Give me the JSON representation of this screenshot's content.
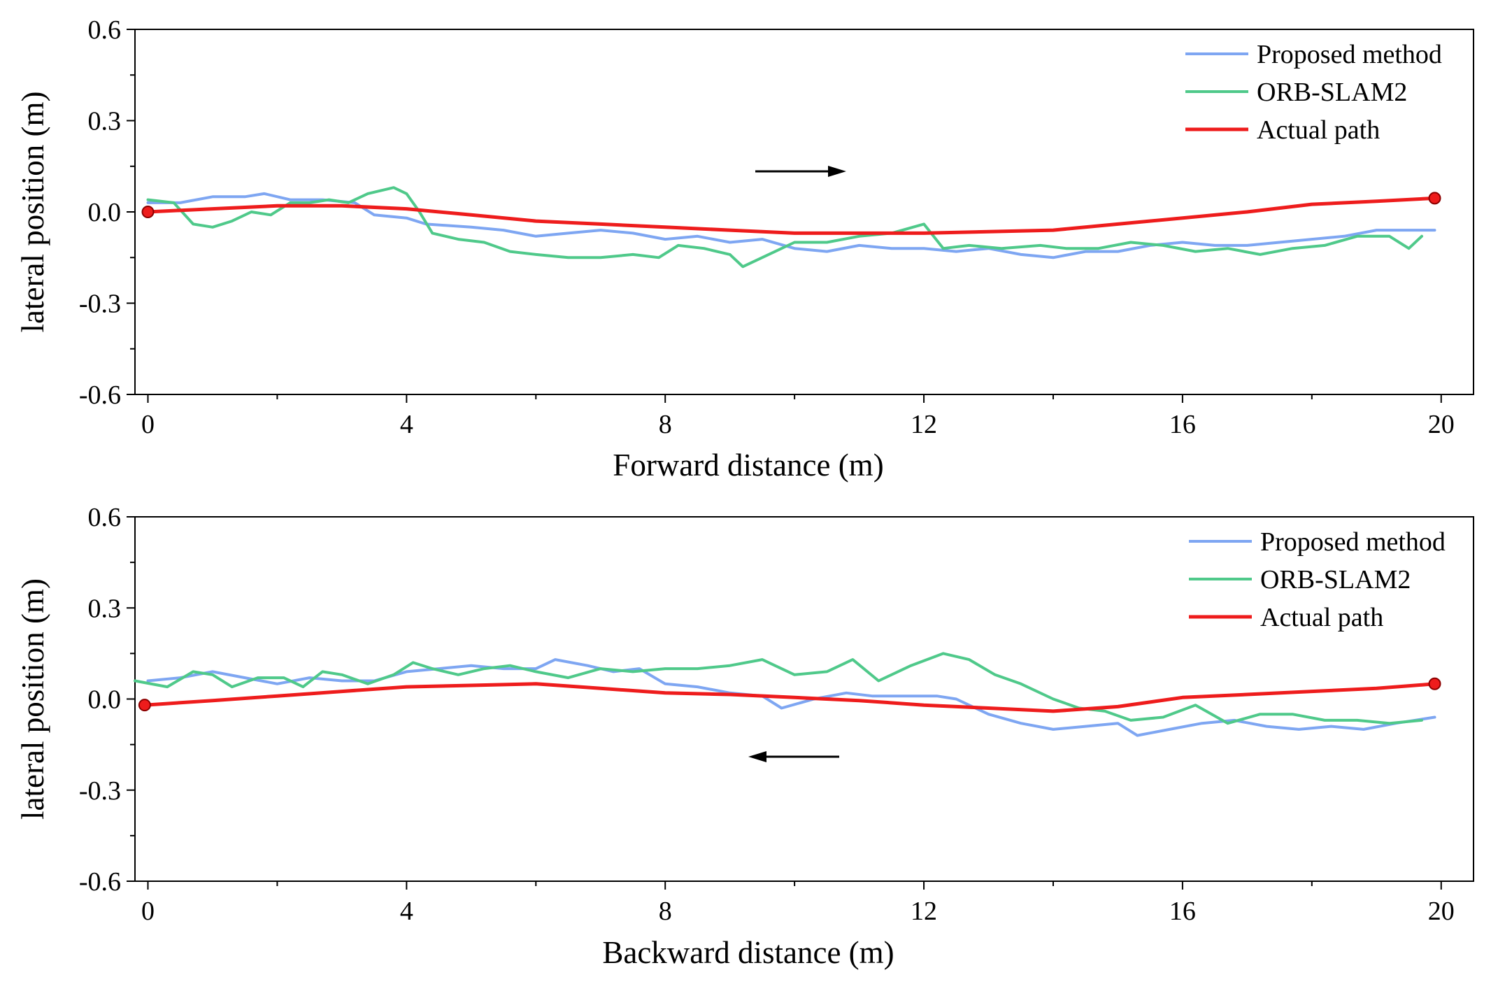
{
  "chart_data": [
    {
      "type": "line",
      "title": "",
      "xlabel": "Forward distance (m)",
      "ylabel": "lateral position (m)",
      "xlim": [
        -0.2,
        20.5
      ],
      "ylim": [
        -0.6,
        0.6
      ],
      "xticks": [
        0,
        4,
        8,
        12,
        16,
        20
      ],
      "xtick_labels": [
        "0",
        "4",
        "8",
        "12",
        "16",
        "20"
      ],
      "yticks": [
        0.6,
        0.3,
        0.0,
        -0.3,
        -0.6
      ],
      "ytick_labels": [
        "0.6",
        "0.3",
        "0.0",
        "-0.3",
        "-0.6"
      ],
      "grid": false,
      "legend_position": "top-right",
      "direction_arrow": "right",
      "series": [
        {
          "name": "Proposed method",
          "color": "#7ea6f2",
          "x": [
            0,
            0.5,
            1.0,
            1.5,
            1.8,
            2.2,
            2.7,
            3.2,
            3.5,
            4.0,
            4.3,
            5.0,
            5.5,
            6.0,
            6.5,
            7.0,
            7.5,
            8.0,
            8.5,
            9.0,
            9.5,
            10.0,
            10.5,
            11.0,
            11.5,
            12.0,
            12.5,
            13.0,
            13.5,
            14.0,
            14.5,
            15.0,
            15.5,
            16.0,
            16.5,
            17.0,
            17.5,
            18.0,
            18.5,
            19.0,
            19.5,
            19.9
          ],
          "y": [
            0.03,
            0.03,
            0.05,
            0.05,
            0.06,
            0.04,
            0.04,
            0.03,
            -0.01,
            -0.02,
            -0.04,
            -0.05,
            -0.06,
            -0.08,
            -0.07,
            -0.06,
            -0.07,
            -0.09,
            -0.08,
            -0.1,
            -0.09,
            -0.12,
            -0.13,
            -0.11,
            -0.12,
            -0.12,
            -0.13,
            -0.12,
            -0.14,
            -0.15,
            -0.13,
            -0.13,
            -0.11,
            -0.1,
            -0.11,
            -0.11,
            -0.1,
            -0.09,
            -0.08,
            -0.06,
            -0.06,
            -0.06
          ]
        },
        {
          "name": "ORB-SLAM2",
          "color": "#4fc98a",
          "x": [
            0,
            0.4,
            0.7,
            1.0,
            1.3,
            1.6,
            1.9,
            2.2,
            2.5,
            2.8,
            3.1,
            3.4,
            3.8,
            4.0,
            4.2,
            4.4,
            4.8,
            5.2,
            5.6,
            6.0,
            6.5,
            7.0,
            7.5,
            7.9,
            8.2,
            8.6,
            9.0,
            9.2,
            9.6,
            10.0,
            10.5,
            11.0,
            11.5,
            12.0,
            12.3,
            12.7,
            13.2,
            13.8,
            14.2,
            14.7,
            15.2,
            15.7,
            16.2,
            16.7,
            17.2,
            17.7,
            18.2,
            18.7,
            19.2,
            19.5,
            19.7
          ],
          "y": [
            0.04,
            0.03,
            -0.04,
            -0.05,
            -0.03,
            0.0,
            -0.01,
            0.03,
            0.03,
            0.04,
            0.03,
            0.06,
            0.08,
            0.06,
            0.0,
            -0.07,
            -0.09,
            -0.1,
            -0.13,
            -0.14,
            -0.15,
            -0.15,
            -0.14,
            -0.15,
            -0.11,
            -0.12,
            -0.14,
            -0.18,
            -0.14,
            -0.1,
            -0.1,
            -0.08,
            -0.07,
            -0.04,
            -0.12,
            -0.11,
            -0.12,
            -0.11,
            -0.12,
            -0.12,
            -0.1,
            -0.11,
            -0.13,
            -0.12,
            -0.14,
            -0.12,
            -0.11,
            -0.08,
            -0.08,
            -0.12,
            -0.08
          ]
        },
        {
          "name": "Actual path",
          "color": "#ee1c1c",
          "x": [
            0,
            1,
            2,
            3,
            4,
            5,
            6,
            7,
            8,
            9,
            10,
            11,
            12,
            13,
            14,
            15,
            16,
            17,
            18,
            19,
            19.9
          ],
          "y": [
            0.0,
            0.01,
            0.02,
            0.02,
            0.01,
            -0.01,
            -0.03,
            -0.04,
            -0.05,
            -0.06,
            -0.07,
            -0.07,
            -0.07,
            -0.065,
            -0.06,
            -0.04,
            -0.02,
            0.0,
            0.025,
            0.035,
            0.045
          ]
        }
      ],
      "endpoints": [
        {
          "x": 0,
          "y": 0.0
        },
        {
          "x": 19.9,
          "y": 0.045
        }
      ]
    },
    {
      "type": "line",
      "title": "",
      "xlabel": "Backward distance (m)",
      "ylabel": "lateral position (m)",
      "xlim": [
        -0.2,
        20.5
      ],
      "ylim": [
        -0.6,
        0.6
      ],
      "xticks": [
        0,
        4,
        8,
        12,
        16,
        20
      ],
      "xtick_labels": [
        "0",
        "4",
        "8",
        "12",
        "16",
        "20"
      ],
      "yticks": [
        0.6,
        0.3,
        0.0,
        -0.3,
        -0.6
      ],
      "ytick_labels": [
        "0.6",
        "0.3",
        "0.0",
        "-0.3",
        "-0.6"
      ],
      "grid": false,
      "legend_position": "top-right",
      "direction_arrow": "left",
      "series": [
        {
          "name": "Proposed method",
          "color": "#7ea6f2",
          "x": [
            0,
            0.5,
            1.0,
            1.5,
            2.0,
            2.5,
            3.0,
            3.5,
            4.0,
            4.5,
            5.0,
            5.5,
            6.0,
            6.3,
            6.8,
            7.2,
            7.6,
            8.0,
            8.5,
            9.0,
            9.5,
            9.8,
            10.3,
            10.8,
            11.2,
            11.7,
            12.2,
            12.5,
            13.0,
            13.5,
            14.0,
            14.5,
            15.0,
            15.3,
            15.8,
            16.3,
            16.8,
            17.3,
            17.8,
            18.3,
            18.8,
            19.3,
            19.9
          ],
          "y": [
            0.06,
            0.07,
            0.09,
            0.07,
            0.05,
            0.07,
            0.06,
            0.06,
            0.09,
            0.1,
            0.11,
            0.1,
            0.1,
            0.13,
            0.11,
            0.09,
            0.1,
            0.05,
            0.04,
            0.02,
            0.01,
            -0.03,
            0.0,
            0.02,
            0.01,
            0.01,
            0.01,
            0.0,
            -0.05,
            -0.08,
            -0.1,
            -0.09,
            -0.08,
            -0.12,
            -0.1,
            -0.08,
            -0.07,
            -0.09,
            -0.1,
            -0.09,
            -0.1,
            -0.08,
            -0.06
          ]
        },
        {
          "name": "ORB-SLAM2",
          "color": "#4fc98a",
          "x": [
            -0.2,
            0.3,
            0.7,
            1.0,
            1.3,
            1.7,
            2.1,
            2.4,
            2.7,
            3.0,
            3.4,
            3.8,
            4.1,
            4.4,
            4.8,
            5.2,
            5.6,
            6.0,
            6.5,
            7.0,
            7.5,
            8.0,
            8.5,
            9.0,
            9.5,
            10.0,
            10.5,
            10.9,
            11.3,
            11.8,
            12.3,
            12.7,
            13.1,
            13.5,
            14.0,
            14.4,
            14.8,
            15.2,
            15.7,
            16.2,
            16.7,
            17.2,
            17.7,
            18.2,
            18.7,
            19.2,
            19.7
          ],
          "y": [
            0.06,
            0.04,
            0.09,
            0.08,
            0.04,
            0.07,
            0.07,
            0.04,
            0.09,
            0.08,
            0.05,
            0.08,
            0.12,
            0.1,
            0.08,
            0.1,
            0.11,
            0.09,
            0.07,
            0.1,
            0.09,
            0.1,
            0.1,
            0.11,
            0.13,
            0.08,
            0.09,
            0.13,
            0.06,
            0.11,
            0.15,
            0.13,
            0.08,
            0.05,
            0.0,
            -0.03,
            -0.04,
            -0.07,
            -0.06,
            -0.02,
            -0.08,
            -0.05,
            -0.05,
            -0.07,
            -0.07,
            -0.08,
            -0.07
          ]
        },
        {
          "name": "Actual path",
          "color": "#ee1c1c",
          "x": [
            -0.05,
            1,
            2,
            3,
            4,
            5,
            6,
            7,
            8,
            9,
            10,
            11,
            12,
            13,
            14,
            15,
            16,
            17,
            18,
            19,
            19.9
          ],
          "y": [
            -0.02,
            -0.005,
            0.01,
            0.025,
            0.04,
            0.045,
            0.05,
            0.035,
            0.02,
            0.015,
            0.005,
            -0.005,
            -0.02,
            -0.03,
            -0.04,
            -0.025,
            0.005,
            0.015,
            0.025,
            0.035,
            0.05
          ]
        }
      ],
      "endpoints": [
        {
          "x": -0.05,
          "y": -0.02
        },
        {
          "x": 19.9,
          "y": 0.05
        }
      ]
    }
  ]
}
